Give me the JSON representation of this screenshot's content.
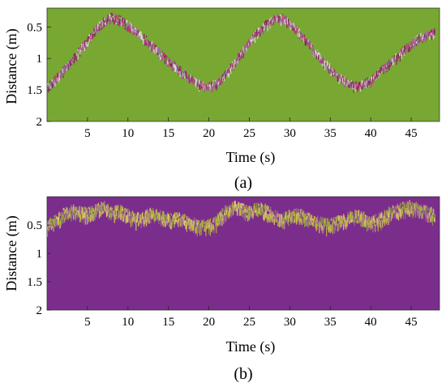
{
  "chart_data": [
    {
      "type": "heatmap",
      "panel_label": "(a)",
      "xlabel": "Time (s)",
      "ylabel": "Distance (m)",
      "xlim": [
        0,
        48.5
      ],
      "ylim": [
        0.2,
        2
      ],
      "y_reversed": true,
      "x_ticks": [
        5,
        10,
        15,
        20,
        25,
        30,
        35,
        40,
        45
      ],
      "y_ticks": [
        0.5,
        1,
        1.5,
        2
      ],
      "y_tick_labels": [
        "0.5",
        "1",
        "1.5",
        "2"
      ],
      "background_color": "#78a832",
      "trace_colors": [
        "#c03a78",
        "#e0e0e0",
        "#7e1f5b",
        "#9b6fb0"
      ],
      "trace": {
        "x": [
          0,
          1,
          2,
          3,
          4,
          5,
          6,
          7,
          8,
          9,
          10,
          11,
          12,
          13,
          14,
          15,
          16,
          17,
          18,
          19,
          20,
          21,
          22,
          23,
          24,
          25,
          26,
          27,
          28,
          29,
          30,
          31,
          32,
          33,
          34,
          35,
          36,
          37,
          38,
          39,
          40,
          41,
          42,
          43,
          44,
          45,
          46,
          47,
          48
        ],
        "y": [
          1.45,
          1.32,
          1.18,
          1.02,
          0.86,
          0.7,
          0.52,
          0.4,
          0.33,
          0.37,
          0.45,
          0.55,
          0.66,
          0.78,
          0.9,
          1.02,
          1.12,
          1.22,
          1.32,
          1.4,
          1.42,
          1.38,
          1.25,
          1.08,
          0.9,
          0.73,
          0.57,
          0.45,
          0.36,
          0.34,
          0.42,
          0.55,
          0.7,
          0.85,
          1.0,
          1.14,
          1.27,
          1.36,
          1.42,
          1.4,
          1.33,
          1.22,
          1.1,
          0.98,
          0.86,
          0.75,
          0.66,
          0.6,
          0.57
        ]
      }
    },
    {
      "type": "heatmap",
      "panel_label": "(b)",
      "xlabel": "Time (s)",
      "ylabel": "Distance (m)",
      "xlim": [
        0,
        48.5
      ],
      "ylim": [
        0,
        2
      ],
      "y_reversed": true,
      "x_ticks": [
        5,
        10,
        15,
        20,
        25,
        30,
        35,
        40,
        45
      ],
      "y_ticks": [
        0.5,
        1,
        1.5,
        2
      ],
      "y_tick_labels": [
        "0.5",
        "1",
        "1.5",
        "2"
      ],
      "background_color": "#7b2d8c",
      "trace_colors": [
        "#c9b83a",
        "#8aa33c",
        "#e0d070",
        "#a66d9a"
      ],
      "trace": {
        "x": [
          0,
          1,
          2,
          3,
          4,
          5,
          6,
          7,
          8,
          9,
          10,
          11,
          12,
          13,
          14,
          15,
          16,
          17,
          18,
          19,
          20,
          21,
          22,
          23,
          24,
          25,
          26,
          27,
          28,
          29,
          30,
          31,
          32,
          33,
          34,
          35,
          36,
          37,
          38,
          39,
          40,
          41,
          42,
          43,
          44,
          45,
          46,
          47,
          48
        ],
        "y": [
          0.5,
          0.42,
          0.3,
          0.22,
          0.25,
          0.28,
          0.2,
          0.15,
          0.28,
          0.22,
          0.3,
          0.38,
          0.33,
          0.28,
          0.32,
          0.38,
          0.35,
          0.4,
          0.45,
          0.5,
          0.48,
          0.4,
          0.25,
          0.15,
          0.2,
          0.25,
          0.18,
          0.22,
          0.3,
          0.38,
          0.32,
          0.28,
          0.35,
          0.4,
          0.45,
          0.48,
          0.42,
          0.38,
          0.3,
          0.35,
          0.42,
          0.38,
          0.3,
          0.22,
          0.18,
          0.15,
          0.2,
          0.25,
          0.3
        ]
      }
    }
  ]
}
